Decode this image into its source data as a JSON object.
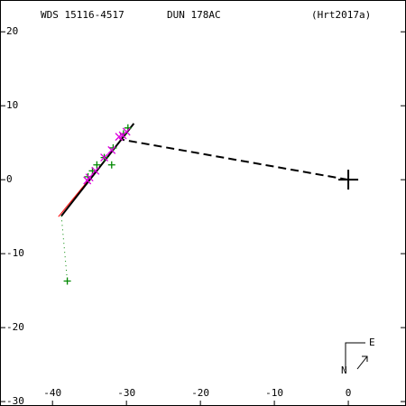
{
  "chart_data": {
    "type": "scatter",
    "title": "WDS 15116-4517",
    "subtitle": "DUN 178AC",
    "reference": "(Hrt2017a)",
    "compass": {
      "north": "N",
      "east": "E"
    },
    "xlim": [
      -47.1,
      7.8
    ],
    "ylim": [
      -30.6,
      24.3
    ],
    "xticks": [
      -40,
      -30,
      -20,
      -10,
      0
    ],
    "yticks": [
      20,
      10,
      0,
      -10,
      -20,
      -30
    ],
    "lines": [
      {
        "color": "#ff0000",
        "dash": "none",
        "width": 1,
        "x": [
          -39.2,
          -30.0
        ],
        "values": [
          -5.0,
          6.2
        ]
      },
      {
        "color": "#000000",
        "dash": "none",
        "width": 2,
        "x": [
          -38.8,
          -29.0
        ],
        "values": [
          -4.9,
          7.6
        ]
      },
      {
        "color": "#000000",
        "dash": "9,5",
        "width": 2,
        "x": [
          0,
          -30.5
        ],
        "values": [
          0,
          5.4
        ]
      },
      {
        "color": "#008800",
        "dash": "1,4",
        "width": 1,
        "x": [
          -38.8,
          -38.0
        ],
        "values": [
          -4.9,
          -13.7
        ]
      }
    ],
    "series": [
      {
        "color": "#008800",
        "marker": "plus",
        "x": [
          -29.8,
          -30.4,
          -31.8,
          -32.0,
          -33.0,
          -34.0,
          -34.6,
          -35.2,
          -38.0
        ],
        "values": [
          7.0,
          6.2,
          4.3,
          2.0,
          3.0,
          2.0,
          1.2,
          0.4,
          -13.7
        ]
      },
      {
        "color": "#dd00dd",
        "marker": "cross",
        "x": [
          -30.0,
          -30.5,
          -31.0,
          -32.0,
          -33.0,
          -34.2,
          -35.0,
          -35.3
        ],
        "values": [
          6.5,
          6.0,
          5.8,
          4.0,
          3.0,
          1.2,
          0.3,
          -0.1
        ]
      },
      {
        "color": "#000000",
        "marker": "bigplus",
        "x": [
          0
        ],
        "values": [
          0
        ]
      }
    ]
  }
}
